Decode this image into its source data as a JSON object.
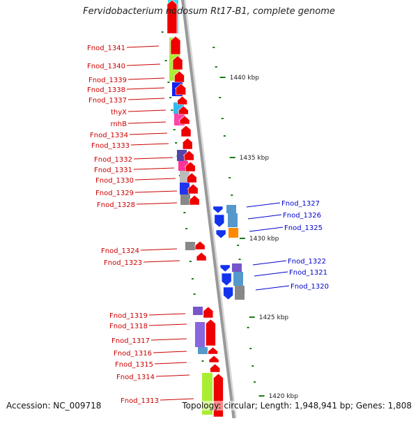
{
  "title": "Fervidobacterium nodosum Rt17-B1, complete genome",
  "footer": {
    "accession": "Accession: NC_009718",
    "summary": "Topology: circular; Length: 1,948,941 bp; Genes: 1,808"
  },
  "scale_labels": [
    "1440 kbp",
    "1435 kbp",
    "1430 kbp",
    "1425 kbp",
    "1420 kbp"
  ],
  "left_gene_labels": [
    "Fnod_1341",
    "Fnod_1340",
    "Fnod_1339",
    "Fnod_1338",
    "Fnod_1337",
    "thyX",
    "rnhB",
    "Fnod_1334",
    "Fnod_1333",
    "Fnod_1332",
    "Fnod_1331",
    "Fnod_1330",
    "Fnod_1329",
    "Fnod_1328",
    "Fnod_1324",
    "Fnod_1323",
    "Fnod_1319",
    "Fnod_1318",
    "Fnod_1317",
    "Fnod_1316",
    "Fnod_1315",
    "Fnod_1314",
    "Fnod_1313"
  ],
  "right_gene_labels": [
    "Fnod_1327",
    "Fnod_1326",
    "Fnod_1325",
    "Fnod_1322",
    "Fnod_1321",
    "Fnod_1320"
  ],
  "colors": {
    "forward_gene": "#ee0000",
    "reverse_gene": "#1133ee",
    "backbone": "#999999",
    "tick": "#1a7a1a",
    "label_left": "#cc0000",
    "label_right": "#0000cc"
  }
}
